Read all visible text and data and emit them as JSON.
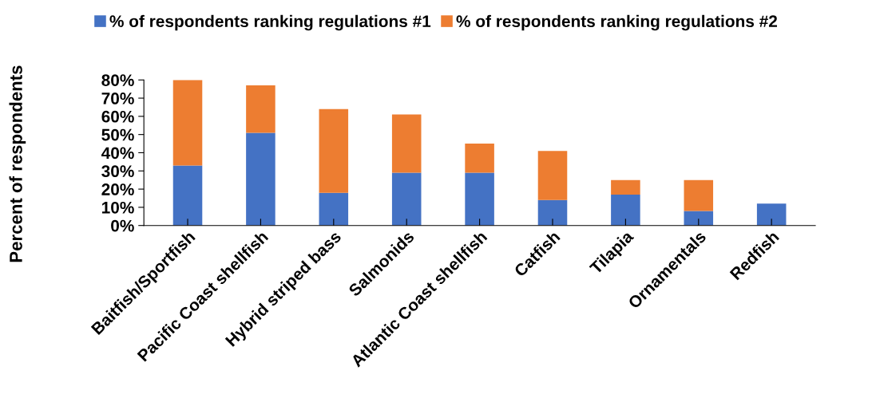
{
  "chart_data": {
    "type": "bar",
    "stacked": true,
    "ylabel": "Percent of respondents",
    "categories": [
      "Baitfish/Sportfish",
      "Pacific Coast shellfish",
      "Hybrid striped bass",
      "Salmonids",
      "Atlantic Coast shellfish",
      "Catfish",
      "Tilapia",
      "Ornamentals",
      "Redfish"
    ],
    "series": [
      {
        "name": "% of respondents ranking regulations #1",
        "color": "#4472c4",
        "values": [
          33,
          51,
          18,
          29,
          29,
          14,
          17,
          8,
          12
        ]
      },
      {
        "name": "% of respondents ranking regulations #2",
        "color": "#ed7d31",
        "values": [
          47,
          26,
          46,
          32,
          16,
          27,
          8,
          17,
          0
        ]
      }
    ],
    "ylim": [
      0,
      80
    ],
    "yticks": [
      {
        "value": 0,
        "label": "0%"
      },
      {
        "value": 10,
        "label": "10%"
      },
      {
        "value": 20,
        "label": "20%"
      },
      {
        "value": 30,
        "label": "30%"
      },
      {
        "value": 40,
        "label": "40%"
      },
      {
        "value": 50,
        "label": "50%"
      },
      {
        "value": 60,
        "label": "60%"
      },
      {
        "value": 70,
        "label": "70%"
      },
      {
        "value": 80,
        "label": "80%"
      }
    ],
    "grid": false,
    "legend": "top"
  }
}
